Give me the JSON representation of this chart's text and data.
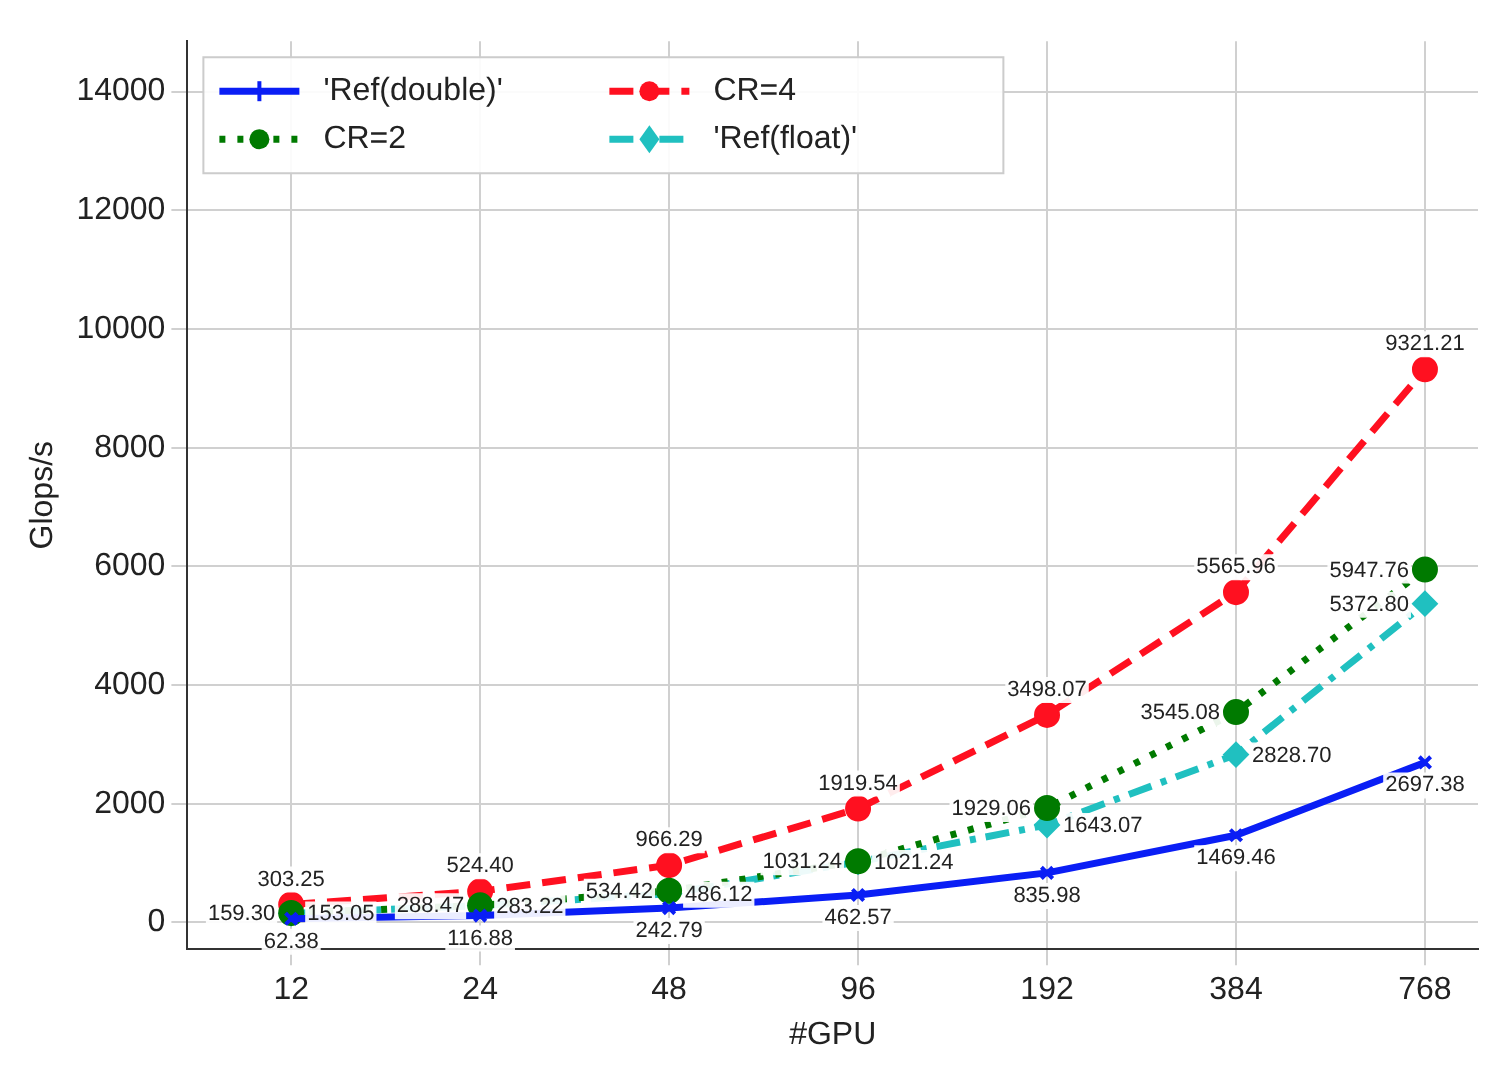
{
  "chart_data": {
    "type": "line",
    "xlabel": "#GPU",
    "ylabel": "Glops/s",
    "log": "x",
    "x": [
      12,
      24,
      48,
      96,
      192,
      384,
      768
    ],
    "xlim": [
      8.2,
      933
    ],
    "xticks": [
      12,
      24,
      48,
      96,
      192,
      384,
      768
    ],
    "ylim": [
      -450,
      14850
    ],
    "yticks": [
      0,
      2000,
      4000,
      6000,
      8000,
      10000,
      12000,
      14000
    ],
    "grid": true,
    "legend": "top left",
    "series": [
      {
        "name": "'Ref(double)'",
        "color": "#0a1ef5",
        "line_style": "solid",
        "marker": "cross",
        "values": [
          62.38,
          116.88,
          242.79,
          462.57,
          835.98,
          1469.46,
          2697.38
        ],
        "value_labels": [
          "62.38",
          "116.88",
          "242.79",
          "462.57",
          "835.98",
          "1469.46",
          "2697.38"
        ]
      },
      {
        "name": "CR=2",
        "color": "#007a00",
        "line_style": "dotted",
        "marker": "circle",
        "values": [
          159.3,
          288.47,
          534.42,
          1031.24,
          1929.06,
          3545.08,
          5947.76
        ],
        "value_labels": [
          "159.30",
          "288.47",
          "534.42",
          "1031.24",
          "1929.06",
          "3545.08",
          "5947.76"
        ]
      },
      {
        "name": "CR=4",
        "color": "#ff1020",
        "line_style": "dashed",
        "marker": "circle",
        "values": [
          303.25,
          524.4,
          966.29,
          1919.54,
          3498.07,
          5565.96,
          9321.21
        ],
        "value_labels": [
          "303.25",
          "524.40",
          "966.29",
          "1919.54",
          "3498.07",
          "5565.96",
          "9321.21"
        ]
      },
      {
        "name": "'Ref(float)'",
        "color": "#20c0c0",
        "line_style": "dashdot",
        "marker": "diamond",
        "values": [
          153.05,
          283.22,
          486.12,
          1021.24,
          1643.07,
          2828.7,
          5372.8
        ],
        "value_labels": [
          "153.05",
          "283.22",
          "486.12",
          "1021.24",
          "1643.07",
          "2828.70",
          "5372.80"
        ]
      }
    ]
  }
}
